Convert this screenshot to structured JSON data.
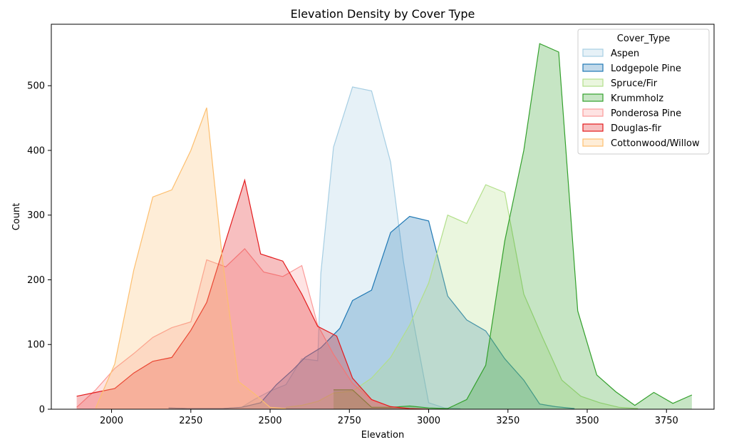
{
  "chart_data": {
    "type": "area",
    "title": "Elevation Density by Cover Type",
    "xlabel": "Elevation",
    "ylabel": "Count",
    "xlim": [
      1810,
      3900
    ],
    "ylim": [
      0,
      595
    ],
    "xticks": [
      2000,
      2250,
      2500,
      2750,
      3000,
      3250,
      3500,
      3750
    ],
    "yticks": [
      0,
      100,
      200,
      300,
      400,
      500
    ],
    "grid": false,
    "legend": {
      "title": "Cover_Type",
      "placement": "top-right"
    },
    "series": [
      {
        "name": "Aspen",
        "color": "#a6cee3",
        "points": [
          [
            2180,
            2
          ],
          [
            2240,
            1
          ],
          [
            2300,
            1
          ],
          [
            2350,
            1
          ],
          [
            2410,
            3
          ],
          [
            2450,
            15
          ],
          [
            2500,
            28
          ],
          [
            2550,
            38
          ],
          [
            2600,
            78
          ],
          [
            2650,
            75
          ],
          [
            2660,
            210
          ],
          [
            2700,
            405
          ],
          [
            2760,
            498
          ],
          [
            2820,
            492
          ],
          [
            2880,
            382
          ],
          [
            2920,
            230
          ],
          [
            2950,
            140
          ],
          [
            3000,
            10
          ],
          [
            3050,
            2
          ],
          [
            3100,
            1
          ]
        ]
      },
      {
        "name": "Lodgepole Pine",
        "color": "#1f78b4",
        "points": [
          [
            2180,
            2
          ],
          [
            2240,
            1
          ],
          [
            2300,
            1
          ],
          [
            2350,
            1
          ],
          [
            2410,
            3
          ],
          [
            2470,
            10
          ],
          [
            2520,
            38
          ],
          [
            2570,
            60
          ],
          [
            2610,
            80
          ],
          [
            2660,
            95
          ],
          [
            2720,
            125
          ],
          [
            2760,
            168
          ],
          [
            2820,
            184
          ],
          [
            2880,
            273
          ],
          [
            2940,
            298
          ],
          [
            3000,
            291
          ],
          [
            3060,
            175
          ],
          [
            3120,
            138
          ],
          [
            3180,
            121
          ],
          [
            3240,
            78
          ],
          [
            3300,
            45
          ],
          [
            3350,
            8
          ],
          [
            3400,
            4
          ],
          [
            3460,
            1
          ]
        ]
      },
      {
        "name": "Spruce/Fir",
        "color": "#b2df8a",
        "points": [
          [
            2550,
            3
          ],
          [
            2600,
            6
          ],
          [
            2650,
            12
          ],
          [
            2700,
            25
          ],
          [
            2760,
            28
          ],
          [
            2820,
            48
          ],
          [
            2880,
            80
          ],
          [
            2940,
            130
          ],
          [
            3000,
            195
          ],
          [
            3060,
            300
          ],
          [
            3120,
            287
          ],
          [
            3180,
            347
          ],
          [
            3240,
            335
          ],
          [
            3300,
            178
          ],
          [
            3360,
            110
          ],
          [
            3420,
            45
          ],
          [
            3480,
            20
          ],
          [
            3540,
            10
          ],
          [
            3600,
            3
          ],
          [
            3660,
            1
          ]
        ]
      },
      {
        "name": "Krummholz",
        "color": "#33a02c",
        "points": [
          [
            2700,
            30
          ],
          [
            2760,
            30
          ],
          [
            2820,
            3
          ],
          [
            2880,
            3
          ],
          [
            2940,
            5
          ],
          [
            3000,
            2
          ],
          [
            3060,
            1
          ],
          [
            3120,
            15
          ],
          [
            3180,
            68
          ],
          [
            3240,
            260
          ],
          [
            3300,
            400
          ],
          [
            3350,
            565
          ],
          [
            3410,
            552
          ],
          [
            3470,
            152
          ],
          [
            3530,
            53
          ],
          [
            3590,
            27
          ],
          [
            3650,
            6
          ],
          [
            3710,
            26
          ],
          [
            3770,
            9
          ],
          [
            3830,
            22
          ]
        ]
      },
      {
        "name": "Ponderosa Pine",
        "color": "#fb9a99",
        "points": [
          [
            1890,
            3
          ],
          [
            1950,
            30
          ],
          [
            2010,
            63
          ],
          [
            2070,
            86
          ],
          [
            2130,
            111
          ],
          [
            2190,
            126
          ],
          [
            2250,
            135
          ],
          [
            2300,
            231
          ],
          [
            2360,
            220
          ],
          [
            2420,
            248
          ],
          [
            2480,
            212
          ],
          [
            2540,
            205
          ],
          [
            2600,
            222
          ],
          [
            2650,
            130
          ],
          [
            2700,
            85
          ],
          [
            2760,
            40
          ],
          [
            2820,
            14
          ],
          [
            2880,
            4
          ],
          [
            2940,
            1
          ],
          [
            3000,
            0
          ]
        ]
      },
      {
        "name": "Douglas-fir",
        "color": "#e31a1c",
        "points": [
          [
            1890,
            20
          ],
          [
            1950,
            26
          ],
          [
            2010,
            32
          ],
          [
            2070,
            56
          ],
          [
            2130,
            74
          ],
          [
            2190,
            80
          ],
          [
            2250,
            122
          ],
          [
            2300,
            165
          ],
          [
            2360,
            260
          ],
          [
            2420,
            354
          ],
          [
            2470,
            240
          ],
          [
            2540,
            229
          ],
          [
            2600,
            178
          ],
          [
            2650,
            128
          ],
          [
            2710,
            113
          ],
          [
            2760,
            48
          ],
          [
            2820,
            15
          ],
          [
            2880,
            4
          ],
          [
            2940,
            1
          ],
          [
            3000,
            0
          ]
        ]
      },
      {
        "name": "Cottonwood/Willow",
        "color": "#fdbf6f",
        "points": [
          [
            1950,
            2
          ],
          [
            2010,
            70
          ],
          [
            2070,
            215
          ],
          [
            2130,
            328
          ],
          [
            2190,
            339
          ],
          [
            2250,
            400
          ],
          [
            2300,
            466
          ],
          [
            2350,
            230
          ],
          [
            2400,
            43
          ],
          [
            2450,
            24
          ],
          [
            2500,
            3
          ],
          [
            2550,
            1
          ]
        ]
      }
    ]
  }
}
